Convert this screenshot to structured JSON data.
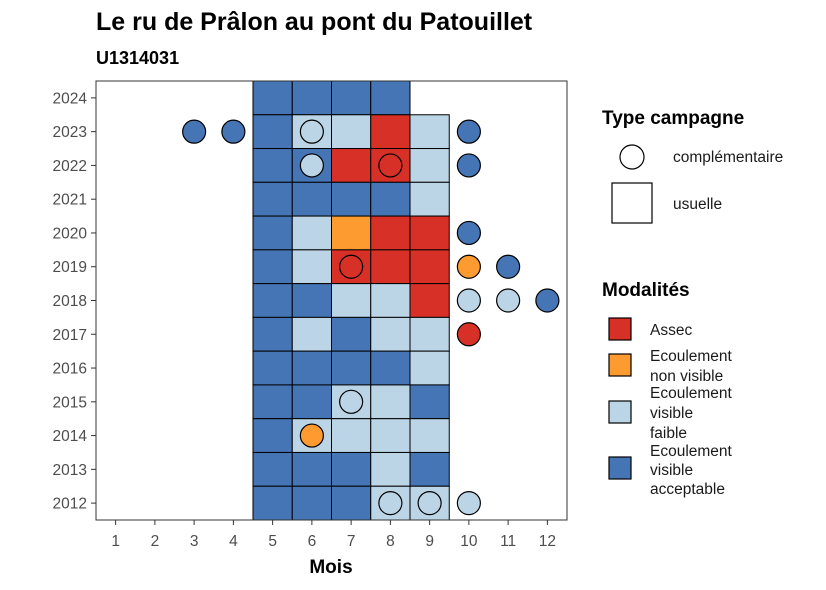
{
  "chart_data": {
    "type": "heatmap",
    "title": "Le ru de Prâlon au pont du Patouillet",
    "subtitle": "U1314031",
    "xlabel": "Mois",
    "ylabel": "",
    "x_ticks": [
      "1",
      "2",
      "3",
      "4",
      "5",
      "6",
      "7",
      "8",
      "9",
      "10",
      "11",
      "12"
    ],
    "y_ticks": [
      "2012",
      "2013",
      "2014",
      "2015",
      "2016",
      "2017",
      "2018",
      "2019",
      "2020",
      "2021",
      "2022",
      "2023",
      "2024"
    ],
    "xlim": [
      0.5,
      12.5
    ],
    "ylim": [
      2011.5,
      2024.5
    ],
    "grid": false,
    "colors": {
      "Assec": "#d73027",
      "Ecoulement non visible": "#fd9a30",
      "Ecoulement visible faible": "#bcd5e6",
      "Ecoulement visible acceptable": "#4575b4"
    },
    "usuelle_tiles": [
      {
        "year": 2024,
        "month": 5,
        "modalite": "Ecoulement visible acceptable"
      },
      {
        "year": 2024,
        "month": 6,
        "modalite": "Ecoulement visible acceptable"
      },
      {
        "year": 2024,
        "month": 7,
        "modalite": "Ecoulement visible acceptable"
      },
      {
        "year": 2024,
        "month": 8,
        "modalite": "Ecoulement visible acceptable"
      },
      {
        "year": 2023,
        "month": 5,
        "modalite": "Ecoulement visible acceptable"
      },
      {
        "year": 2023,
        "month": 6,
        "modalite": "Ecoulement visible faible"
      },
      {
        "year": 2023,
        "month": 7,
        "modalite": "Ecoulement visible faible"
      },
      {
        "year": 2023,
        "month": 8,
        "modalite": "Assec"
      },
      {
        "year": 2023,
        "month": 9,
        "modalite": "Ecoulement visible faible"
      },
      {
        "year": 2022,
        "month": 5,
        "modalite": "Ecoulement visible acceptable"
      },
      {
        "year": 2022,
        "month": 6,
        "modalite": "Ecoulement visible acceptable"
      },
      {
        "year": 2022,
        "month": 7,
        "modalite": "Assec"
      },
      {
        "year": 2022,
        "month": 8,
        "modalite": "Assec"
      },
      {
        "year": 2022,
        "month": 9,
        "modalite": "Ecoulement visible faible"
      },
      {
        "year": 2021,
        "month": 5,
        "modalite": "Ecoulement visible acceptable"
      },
      {
        "year": 2021,
        "month": 6,
        "modalite": "Ecoulement visible acceptable"
      },
      {
        "year": 2021,
        "month": 7,
        "modalite": "Ecoulement visible acceptable"
      },
      {
        "year": 2021,
        "month": 8,
        "modalite": "Ecoulement visible acceptable"
      },
      {
        "year": 2021,
        "month": 9,
        "modalite": "Ecoulement visible faible"
      },
      {
        "year": 2020,
        "month": 5,
        "modalite": "Ecoulement visible acceptable"
      },
      {
        "year": 2020,
        "month": 6,
        "modalite": "Ecoulement visible faible"
      },
      {
        "year": 2020,
        "month": 7,
        "modalite": "Ecoulement non visible"
      },
      {
        "year": 2020,
        "month": 8,
        "modalite": "Assec"
      },
      {
        "year": 2020,
        "month": 9,
        "modalite": "Assec"
      },
      {
        "year": 2019,
        "month": 5,
        "modalite": "Ecoulement visible acceptable"
      },
      {
        "year": 2019,
        "month": 6,
        "modalite": "Ecoulement visible faible"
      },
      {
        "year": 2019,
        "month": 7,
        "modalite": "Assec"
      },
      {
        "year": 2019,
        "month": 8,
        "modalite": "Assec"
      },
      {
        "year": 2019,
        "month": 9,
        "modalite": "Assec"
      },
      {
        "year": 2018,
        "month": 5,
        "modalite": "Ecoulement visible acceptable"
      },
      {
        "year": 2018,
        "month": 6,
        "modalite": "Ecoulement visible acceptable"
      },
      {
        "year": 2018,
        "month": 7,
        "modalite": "Ecoulement visible faible"
      },
      {
        "year": 2018,
        "month": 8,
        "modalite": "Ecoulement visible faible"
      },
      {
        "year": 2018,
        "month": 9,
        "modalite": "Assec"
      },
      {
        "year": 2017,
        "month": 5,
        "modalite": "Ecoulement visible acceptable"
      },
      {
        "year": 2017,
        "month": 6,
        "modalite": "Ecoulement visible faible"
      },
      {
        "year": 2017,
        "month": 7,
        "modalite": "Ecoulement visible acceptable"
      },
      {
        "year": 2017,
        "month": 8,
        "modalite": "Ecoulement visible faible"
      },
      {
        "year": 2017,
        "month": 9,
        "modalite": "Ecoulement visible faible"
      },
      {
        "year": 2016,
        "month": 5,
        "modalite": "Ecoulement visible acceptable"
      },
      {
        "year": 2016,
        "month": 6,
        "modalite": "Ecoulement visible acceptable"
      },
      {
        "year": 2016,
        "month": 7,
        "modalite": "Ecoulement visible acceptable"
      },
      {
        "year": 2016,
        "month": 8,
        "modalite": "Ecoulement visible acceptable"
      },
      {
        "year": 2016,
        "month": 9,
        "modalite": "Ecoulement visible faible"
      },
      {
        "year": 2015,
        "month": 5,
        "modalite": "Ecoulement visible acceptable"
      },
      {
        "year": 2015,
        "month": 6,
        "modalite": "Ecoulement visible acceptable"
      },
      {
        "year": 2015,
        "month": 7,
        "modalite": "Ecoulement visible faible"
      },
      {
        "year": 2015,
        "month": 8,
        "modalite": "Ecoulement visible faible"
      },
      {
        "year": 2015,
        "month": 9,
        "modalite": "Ecoulement visible acceptable"
      },
      {
        "year": 2014,
        "month": 5,
        "modalite": "Ecoulement visible acceptable"
      },
      {
        "year": 2014,
        "month": 6,
        "modalite": "Ecoulement visible faible"
      },
      {
        "year": 2014,
        "month": 7,
        "modalite": "Ecoulement visible faible"
      },
      {
        "year": 2014,
        "month": 8,
        "modalite": "Ecoulement visible faible"
      },
      {
        "year": 2014,
        "month": 9,
        "modalite": "Ecoulement visible faible"
      },
      {
        "year": 2013,
        "month": 5,
        "modalite": "Ecoulement visible acceptable"
      },
      {
        "year": 2013,
        "month": 6,
        "modalite": "Ecoulement visible acceptable"
      },
      {
        "year": 2013,
        "month": 7,
        "modalite": "Ecoulement visible acceptable"
      },
      {
        "year": 2013,
        "month": 8,
        "modalite": "Ecoulement visible faible"
      },
      {
        "year": 2013,
        "month": 9,
        "modalite": "Ecoulement visible acceptable"
      },
      {
        "year": 2012,
        "month": 5,
        "modalite": "Ecoulement visible acceptable"
      },
      {
        "year": 2012,
        "month": 6,
        "modalite": "Ecoulement visible acceptable"
      },
      {
        "year": 2012,
        "month": 7,
        "modalite": "Ecoulement visible acceptable"
      },
      {
        "year": 2012,
        "month": 8,
        "modalite": "Ecoulement visible faible"
      },
      {
        "year": 2012,
        "month": 9,
        "modalite": "Ecoulement visible faible"
      }
    ],
    "complementaire_points": [
      {
        "year": 2023,
        "month": 3,
        "modalite": "Ecoulement visible acceptable"
      },
      {
        "year": 2023,
        "month": 4,
        "modalite": "Ecoulement visible acceptable"
      },
      {
        "year": 2023,
        "month": 6,
        "modalite": "Ecoulement visible faible"
      },
      {
        "year": 2023,
        "month": 10,
        "modalite": "Ecoulement visible acceptable"
      },
      {
        "year": 2022,
        "month": 6,
        "modalite": "Ecoulement visible faible"
      },
      {
        "year": 2022,
        "month": 8,
        "modalite": "Assec"
      },
      {
        "year": 2022,
        "month": 10,
        "modalite": "Ecoulement visible acceptable"
      },
      {
        "year": 2020,
        "month": 10,
        "modalite": "Ecoulement visible acceptable"
      },
      {
        "year": 2019,
        "month": 7,
        "modalite": "Assec"
      },
      {
        "year": 2019,
        "month": 10,
        "modalite": "Ecoulement non visible"
      },
      {
        "year": 2019,
        "month": 11,
        "modalite": "Ecoulement visible acceptable"
      },
      {
        "year": 2018,
        "month": 10,
        "modalite": "Ecoulement visible faible"
      },
      {
        "year": 2018,
        "month": 11,
        "modalite": "Ecoulement visible faible"
      },
      {
        "year": 2018,
        "month": 12,
        "modalite": "Ecoulement visible acceptable"
      },
      {
        "year": 2017,
        "month": 10,
        "modalite": "Assec"
      },
      {
        "year": 2015,
        "month": 7,
        "modalite": "Ecoulement visible faible"
      },
      {
        "year": 2014,
        "month": 6,
        "modalite": "Ecoulement non visible"
      },
      {
        "year": 2012,
        "month": 8,
        "modalite": "Ecoulement visible faible"
      },
      {
        "year": 2012,
        "month": 9,
        "modalite": "Ecoulement visible faible"
      },
      {
        "year": 2012,
        "month": 10,
        "modalite": "Ecoulement visible faible"
      }
    ],
    "legend": {
      "placement": "right",
      "type_title": "Type campagne",
      "type_entries": [
        "complémentaire",
        "usuelle"
      ],
      "modalites_title": "Modalités",
      "modalites_entries": [
        {
          "key": "Assec",
          "lines": [
            "Assec"
          ]
        },
        {
          "key": "Ecoulement non visible",
          "lines": [
            "Ecoulement",
            "non visible"
          ]
        },
        {
          "key": "Ecoulement visible faible",
          "lines": [
            "Ecoulement",
            "visible",
            "faible"
          ]
        },
        {
          "key": "Ecoulement visible acceptable",
          "lines": [
            "Ecoulement",
            "visible",
            "acceptable"
          ]
        }
      ]
    }
  }
}
